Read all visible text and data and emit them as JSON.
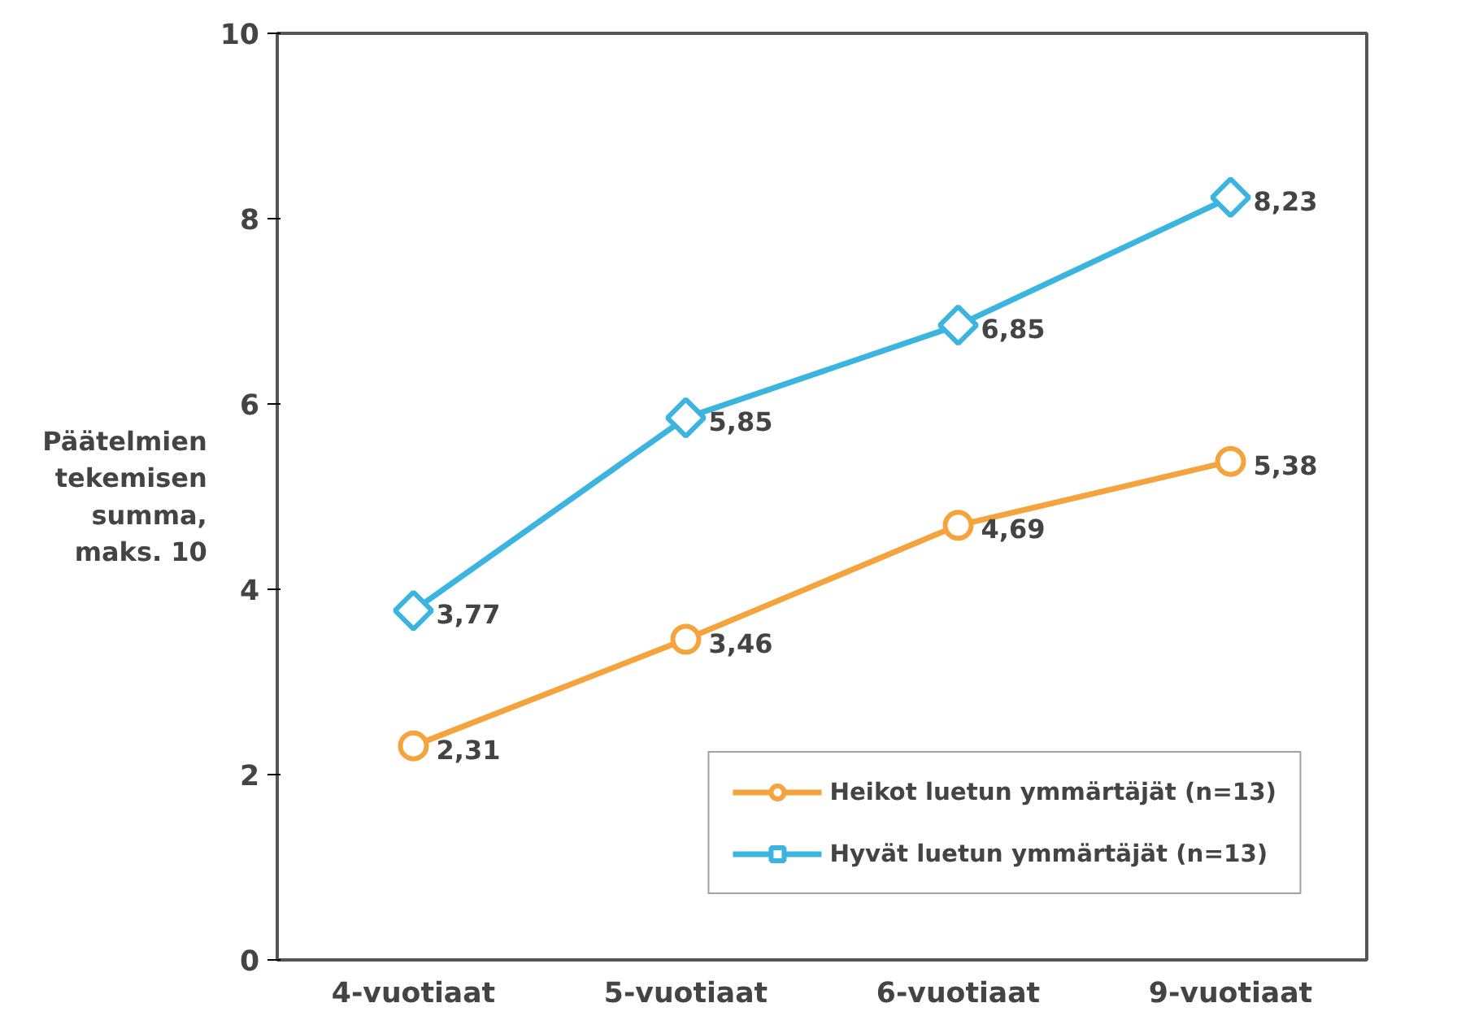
{
  "chart_data": {
    "type": "line",
    "ylabel": "Päätelmien\ntekemisen\nsumma,\nmaks. 10",
    "categories": [
      "4-vuotiaat",
      "5-vuotiaat",
      "6-vuotiaat",
      "9-vuotiaat"
    ],
    "series": [
      {
        "name": "Heikot luetun ymmärtäjät (n=13)",
        "color": "#f5a33c",
        "marker": "circle",
        "values": [
          2.31,
          3.46,
          4.69,
          5.38
        ],
        "value_labels": [
          "2,31",
          "3,46",
          "4,69",
          "5,38"
        ]
      },
      {
        "name": "Hyvät luetun ymmärtäjät (n=13)",
        "color": "#3cb4e0",
        "marker": "diamond",
        "values": [
          3.77,
          5.85,
          6.85,
          8.23
        ],
        "value_labels": [
          "3,77",
          "5,85",
          "6,85",
          "8,23"
        ]
      }
    ],
    "ylim": [
      0,
      10
    ],
    "yticks": [
      0,
      2,
      4,
      6,
      8,
      10
    ],
    "grid": false,
    "legend": "bottom right",
    "line_style": "solid"
  }
}
